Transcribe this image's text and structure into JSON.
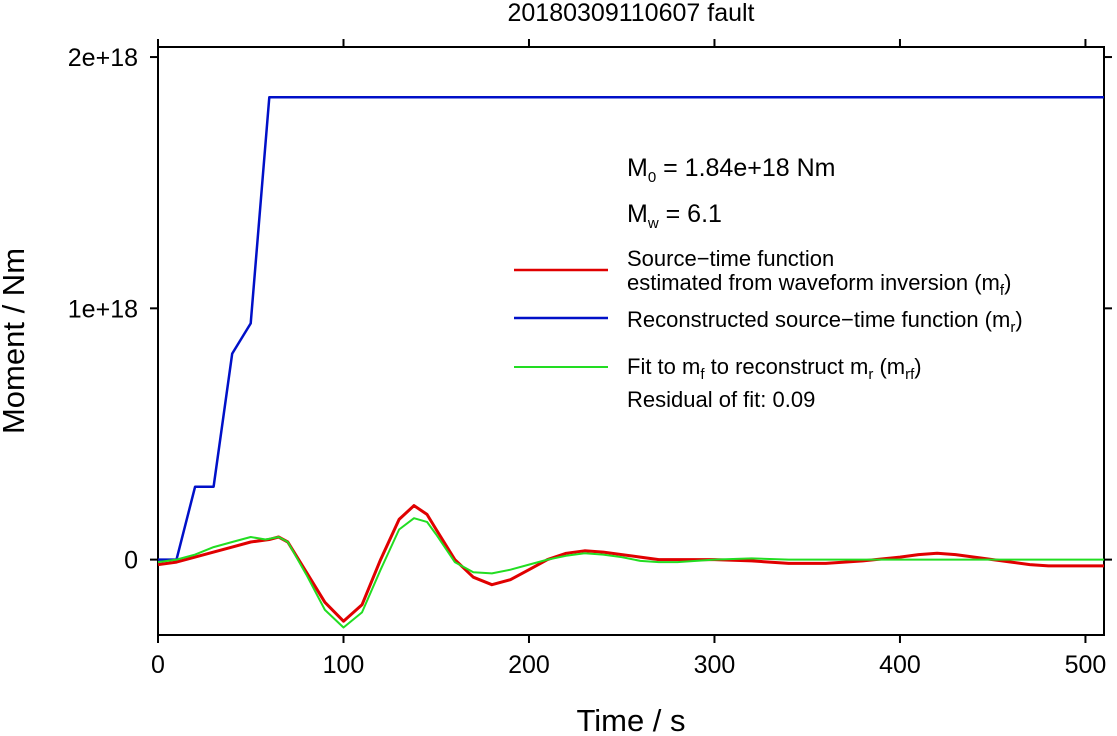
{
  "chart_data": {
    "type": "line",
    "title": "20180309110607 fault",
    "xlabel": "Time / s",
    "ylabel": "Moment / Nm",
    "xlim": [
      0,
      510
    ],
    "ylim": [
      -3e+17,
      2.04e+18
    ],
    "x_ticks": [
      {
        "value": 0,
        "label": "0"
      },
      {
        "value": 100,
        "label": "100"
      },
      {
        "value": 200,
        "label": "200"
      },
      {
        "value": 300,
        "label": "300"
      },
      {
        "value": 400,
        "label": "400"
      },
      {
        "value": 500,
        "label": "500"
      }
    ],
    "y_ticks": [
      {
        "value": 0,
        "label": "0"
      },
      {
        "value": 1e+18,
        "label": "1e+18"
      },
      {
        "value": 2e+18,
        "label": "2e+18"
      }
    ],
    "grid": false,
    "legend_position": "right",
    "series": [
      {
        "name": "Source−time function estimated from waveform inversion (mf)",
        "color": "#e00000",
        "x": [
          0,
          10,
          20,
          30,
          40,
          50,
          60,
          65,
          70,
          80,
          90,
          100,
          110,
          120,
          130,
          138,
          145,
          150,
          160,
          170,
          180,
          190,
          200,
          210,
          220,
          230,
          240,
          250,
          260,
          270,
          280,
          300,
          320,
          340,
          360,
          380,
          400,
          410,
          420,
          430,
          440,
          450,
          460,
          470,
          480,
          490,
          500,
          510
        ],
        "y": [
          -2e+16,
          -1e+16,
          1e+16,
          3e+16,
          5e+16,
          7e+16,
          8e+16,
          9e+16,
          7e+16,
          -5e+16,
          -1.7e+17,
          -2.45e+17,
          -1.8e+17,
          0,
          1.6e+17,
          2.15e+17,
          1.8e+17,
          1.2e+17,
          0,
          -7e+16,
          -1e+17,
          -8e+16,
          -4e+16,
          0,
          2.5e+16,
          3.5e+16,
          3e+16,
          2e+16,
          1e+16,
          0,
          0,
          0,
          -5000000000000000.0,
          -1.5e+16,
          -1.5e+16,
          -5000000000000000.0,
          1e+16,
          2e+16,
          2.5e+16,
          2e+16,
          1e+16,
          0,
          -1e+16,
          -2e+16,
          -2.5e+16,
          -2.5e+16,
          -2.5e+16,
          -2.5e+16
        ]
      },
      {
        "name": "Reconstructed source−time function (mr)",
        "color": "#0010c8",
        "x": [
          0,
          10,
          20,
          30,
          40,
          50,
          60,
          510
        ],
        "y": [
          0,
          0,
          2.9e+17,
          2.9e+17,
          8.2e+17,
          9.4e+17,
          1.84e+18,
          1.84e+18
        ]
      },
      {
        "name": "Fit to mf to reconstruct mr (mrf)",
        "color": "#22dd22",
        "x": [
          0,
          10,
          20,
          30,
          40,
          50,
          58,
          65,
          70,
          80,
          90,
          100,
          110,
          120,
          130,
          138,
          145,
          150,
          160,
          170,
          180,
          190,
          200,
          210,
          220,
          230,
          240,
          250,
          260,
          270,
          280,
          300,
          320,
          340,
          360,
          380,
          400,
          450,
          510
        ],
        "y": [
          -1e+16,
          0,
          2e+16,
          5e+16,
          7e+16,
          9e+16,
          8e+16,
          9e+16,
          7e+16,
          -6e+16,
          -2e+17,
          -2.7e+17,
          -2.1e+17,
          -4e+16,
          1.2e+17,
          1.65e+17,
          1.5e+17,
          1e+17,
          -1e+16,
          -5e+16,
          -5.5e+16,
          -4e+16,
          -2e+16,
          0,
          1.5e+16,
          2.5e+16,
          2e+16,
          1e+16,
          -5000000000000000.0,
          -1e+16,
          -1e+16,
          0,
          5000000000000000.0,
          0,
          0,
          0,
          0,
          0,
          0
        ]
      }
    ]
  },
  "annotations": {
    "m0": {
      "main": "M",
      "sub": "0",
      "rest": " = 1.84e+18 Nm"
    },
    "mw": {
      "main": "M",
      "sub": "w",
      "rest": " = 6.1"
    },
    "residual": "Residual of fit: 0.09"
  },
  "legend": {
    "red_line1": "Source−time function",
    "red_line2a": "estimated from waveform inversion (m",
    "red_line2_sub": "f",
    "red_line2b": ")",
    "blue_a": "Reconstructed source−time function (m",
    "blue_sub": "r",
    "blue_b": ")",
    "green_a": "Fit to m",
    "green_sub1": "f",
    "green_b": " to reconstruct m",
    "green_sub2": "r",
    "green_c": " (m",
    "green_sub3": "rf",
    "green_d": ")"
  }
}
